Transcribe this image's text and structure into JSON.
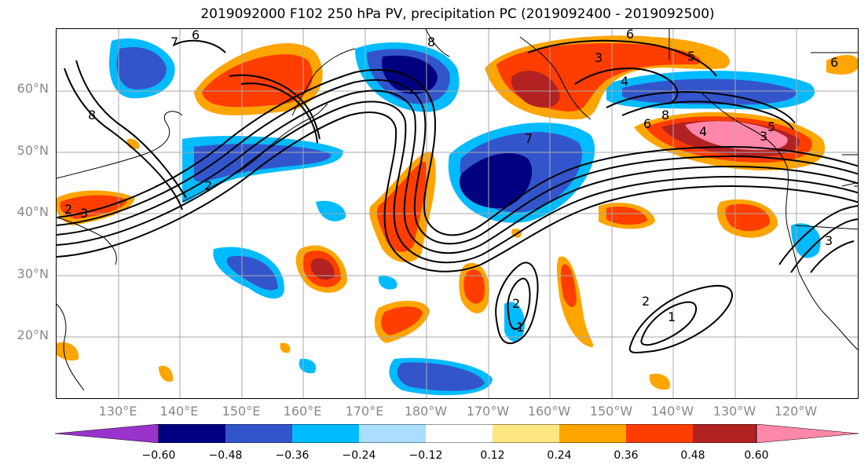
{
  "title": "2019092000 F102 250 hPa PV, precipitation PC (2019092400 - 2019092500)",
  "lat_labels": [
    "60°N",
    "50°N",
    "40°N",
    "30°N",
    "20°N"
  ],
  "lon_labels": [
    "130°E",
    "140°E",
    "150°E",
    "160°E",
    "170°E",
    "180°W",
    "170°W",
    "160°W",
    "150°W",
    "140°W",
    "130°W",
    "120°W"
  ],
  "colorbar": {
    "ticks": [
      "−0.60",
      "−0.48",
      "−0.36",
      "−0.24",
      "−0.12",
      "0.12",
      "0.24",
      "0.36",
      "0.48",
      "0.60"
    ],
    "colors": [
      "#9933cc",
      "#000080",
      "#3355cc",
      "#00bbff",
      "#aaddff",
      "#ffffff",
      "#ffe680",
      "#ffa500",
      "#ff3d00",
      "#b22222",
      "#ff88aa"
    ]
  },
  "pv_contour_labels": [
    "6",
    "7",
    "8",
    "8",
    "6",
    "5",
    "3",
    "4",
    "6",
    "8",
    "4",
    "5",
    "3",
    "3",
    "2",
    "7",
    "2",
    "2",
    "1",
    "2",
    "1",
    "6",
    "3"
  ]
}
